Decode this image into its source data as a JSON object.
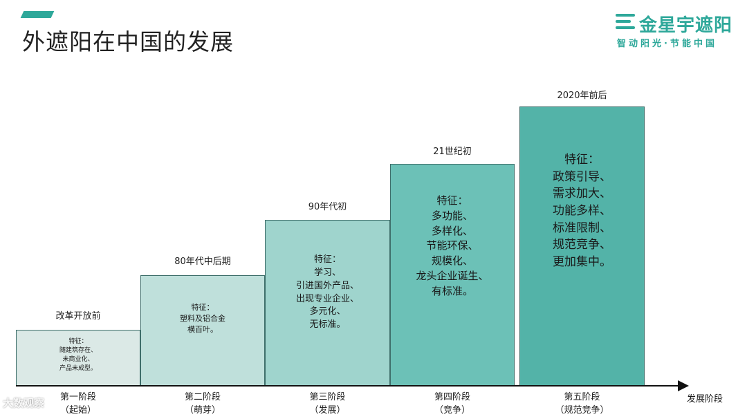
{
  "slide": {
    "title": "外遮阳在中国的发展"
  },
  "logo": {
    "name": "金星宇遮阳",
    "slogan": "智动阳光·节能中国"
  },
  "axis": {
    "label": "发展阶段"
  },
  "stages": [
    {
      "period": "改革开放前",
      "features": [
        "特征：",
        "随建筑存在、",
        "未商业化、",
        "产品未成型。"
      ],
      "label": [
        "第一阶段",
        "（起始）"
      ]
    },
    {
      "period": "80年代中后期",
      "features": [
        "特征：",
        "塑料及铝合金",
        "横百叶。"
      ],
      "label": [
        "第二阶段",
        "（萌芽）"
      ]
    },
    {
      "period": "90年代初",
      "features": [
        "特征：",
        "学习、",
        "引进国外产品、",
        "出现专业企业、",
        "多元化、",
        "无标准。"
      ],
      "label": [
        "第三阶段",
        "（发展）"
      ]
    },
    {
      "period": "21世纪初",
      "features": [
        "特征：",
        "多功能、",
        "多样化、",
        "节能环保、",
        "规模化、",
        "龙头企业诞生、",
        "有标准。"
      ],
      "label": [
        "第四阶段",
        "（竞争）"
      ]
    },
    {
      "period": "2020年前后",
      "features": [
        "特征：",
        "政策引导、",
        "需求加大、",
        "功能多样、",
        "标准限制、",
        "规范竞争、",
        "更加集中。"
      ],
      "label": [
        "第五阶段",
        "（规范竞争）"
      ]
    }
  ],
  "watermark": {
    "text": "大数观察"
  }
}
